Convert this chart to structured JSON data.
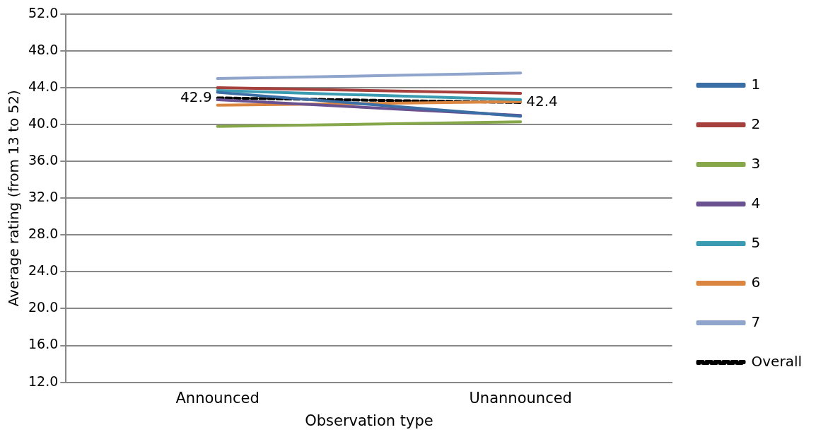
{
  "chart_data": {
    "type": "line",
    "xlabel": "Observation type",
    "ylabel": "Average rating (from 13 to 52)",
    "categories": [
      "Announced",
      "Unannounced"
    ],
    "series": [
      {
        "name": "1",
        "color": "#3a6ea5",
        "values": [
          43.5,
          40.9
        ]
      },
      {
        "name": "2",
        "color": "#a5403d",
        "values": [
          44.0,
          43.4
        ]
      },
      {
        "name": "3",
        "color": "#86a84a",
        "values": [
          39.8,
          40.3
        ]
      },
      {
        "name": "4",
        "color": "#6a5190",
        "values": [
          42.7,
          41.0
        ]
      },
      {
        "name": "5",
        "color": "#3b9bb0",
        "values": [
          43.7,
          42.7
        ]
      },
      {
        "name": "6",
        "color": "#db8640",
        "values": [
          42.1,
          42.5
        ]
      },
      {
        "name": "7",
        "color": "#8fa5cc",
        "values": [
          45.0,
          45.6
        ]
      },
      {
        "name": "Overall",
        "color": "#000000",
        "values": [
          42.9,
          42.4
        ],
        "line_style": "dashed",
        "value_labels": [
          "42.9",
          "42.4"
        ]
      }
    ],
    "ylim": [
      12,
      52
    ],
    "yticks": [
      {
        "value": 12,
        "label": "12.0"
      },
      {
        "value": 16,
        "label": "16.0"
      },
      {
        "value": 20,
        "label": "20.0"
      },
      {
        "value": 24,
        "label": "24.0"
      },
      {
        "value": 28,
        "label": "28.0"
      },
      {
        "value": 32,
        "label": "32.0"
      },
      {
        "value": 36,
        "label": "36.0"
      },
      {
        "value": 40,
        "label": "40.0"
      },
      {
        "value": 44,
        "label": "44.0"
      },
      {
        "value": 48,
        "label": "48.0"
      },
      {
        "value": 52,
        "label": "52.0"
      }
    ],
    "grid": "y",
    "legend": "right",
    "marker": "none",
    "line_style": "solid"
  }
}
